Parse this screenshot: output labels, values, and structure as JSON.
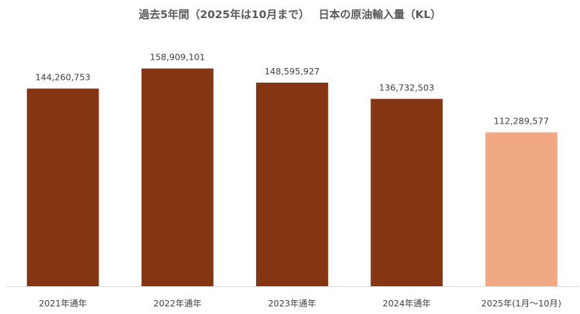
{
  "chart_data": {
    "type": "bar",
    "title": "過去5年間（2025年は10月まで）　 日本の原油輸入量（KL）",
    "categories": [
      "2021年通年",
      "2022年通年",
      "2023年通年",
      "2024年通年",
      "2025年(1月～10月)"
    ],
    "values": [
      144260753,
      158909101,
      148595927,
      136732503,
      112289577
    ],
    "data_labels": [
      "144,260,753",
      "158,909,101",
      "148,595,927",
      "136,732,503",
      "112,289,577"
    ],
    "ylim": [
      0,
      180000000
    ],
    "grid": false,
    "legend": "none",
    "colors": {
      "bar": "#843511",
      "highlight_bar": "#F1A984",
      "axis_line": "#D9D9D9",
      "label_text": "#404040",
      "title_text": "#595959"
    },
    "highlight_index": 4
  }
}
